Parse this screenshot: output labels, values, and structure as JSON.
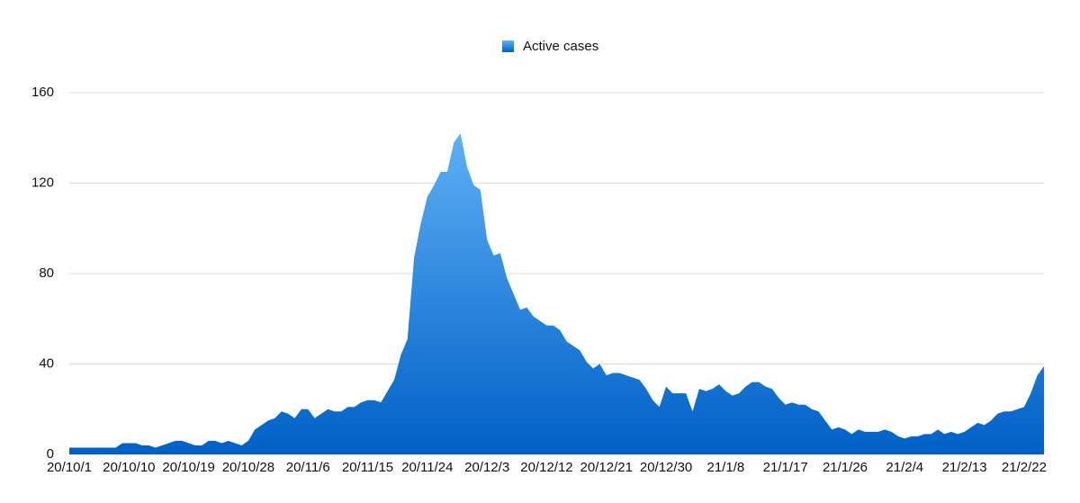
{
  "chart_data": {
    "type": "area",
    "categories": [
      "20/10/1",
      null,
      null,
      null,
      null,
      null,
      null,
      null,
      null,
      "20/10/10",
      null,
      null,
      null,
      null,
      null,
      null,
      null,
      null,
      "20/10/19",
      null,
      null,
      null,
      null,
      null,
      null,
      null,
      null,
      "20/10/28",
      null,
      null,
      null,
      null,
      null,
      null,
      null,
      null,
      "20/11/6",
      null,
      null,
      null,
      null,
      null,
      null,
      null,
      null,
      "20/11/15",
      null,
      null,
      null,
      null,
      null,
      null,
      null,
      null,
      "20/11/24",
      null,
      null,
      null,
      null,
      null,
      null,
      null,
      null,
      "20/12/3",
      null,
      null,
      null,
      null,
      null,
      null,
      null,
      null,
      "20/12/12",
      null,
      null,
      null,
      null,
      null,
      null,
      null,
      null,
      "20/12/21",
      null,
      null,
      null,
      null,
      null,
      null,
      null,
      null,
      "20/12/30",
      null,
      null,
      null,
      null,
      null,
      null,
      null,
      null,
      "21/1/8",
      null,
      null,
      null,
      null,
      null,
      null,
      null,
      null,
      "21/1/17",
      null,
      null,
      null,
      null,
      null,
      null,
      null,
      null,
      "21/1/26",
      null,
      null,
      null,
      null,
      null,
      null,
      null,
      null,
      "21/2/4",
      null,
      null,
      null,
      null,
      null,
      null,
      null,
      null,
      "21/2/13",
      null,
      null,
      null,
      null,
      null,
      null,
      null,
      null,
      "21/2/22",
      null,
      null,
      null
    ],
    "series": [
      {
        "name": "Active cases",
        "color": "#0a6ad0",
        "values": [
          3,
          3,
          3,
          3,
          3,
          3,
          3,
          3,
          5,
          5,
          5,
          4,
          4,
          3,
          4,
          5,
          6,
          6,
          5,
          4,
          4,
          6,
          6,
          5,
          6,
          5,
          4,
          6,
          11,
          13,
          15,
          16,
          19,
          18,
          16,
          20,
          20,
          16,
          18,
          20,
          19,
          19,
          21,
          21,
          23,
          24,
          24,
          23,
          28,
          33,
          44,
          51,
          87,
          102,
          114,
          119,
          125,
          125,
          138,
          142,
          127,
          119,
          117,
          95,
          88,
          89,
          78,
          71,
          64,
          65,
          61,
          59,
          57,
          57,
          55,
          50,
          48,
          46,
          41,
          38,
          40,
          35,
          36,
          36,
          35,
          34,
          33,
          29,
          24,
          21,
          30,
          27,
          27,
          27,
          19,
          29,
          28,
          29,
          31,
          28,
          26,
          27,
          30,
          32,
          32,
          30,
          29,
          25,
          22,
          23,
          22,
          22,
          20,
          19,
          15,
          11,
          12,
          11,
          9,
          11,
          10,
          10,
          10,
          11,
          10,
          8,
          7,
          8,
          8,
          9,
          9,
          11,
          9,
          10,
          9,
          10,
          12,
          14,
          13,
          15,
          18,
          19,
          19,
          20,
          21,
          27,
          35,
          39
        ]
      }
    ],
    "ylim": [
      0,
      160
    ],
    "yticks": [
      0,
      40,
      80,
      120,
      160
    ],
    "grid": true,
    "legend": "top"
  }
}
